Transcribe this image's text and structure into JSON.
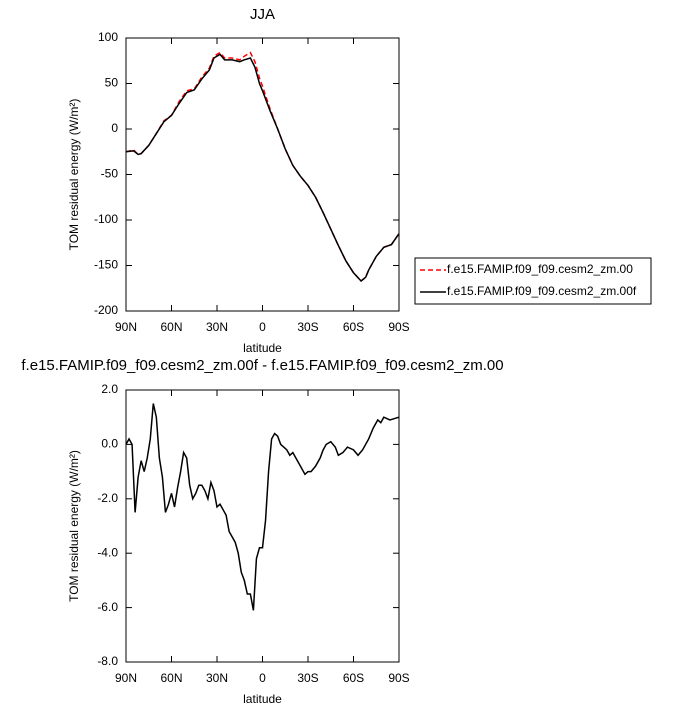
{
  "chart_data": [
    {
      "type": "line",
      "title": "JJA",
      "xlabel": "latitude",
      "ylabel": "TOM residual energy (W/m²)",
      "x": [
        90,
        85,
        82,
        80,
        75,
        70,
        65,
        60,
        55,
        50,
        45,
        40,
        35,
        32,
        28,
        25,
        20,
        15,
        12,
        8,
        5,
        2,
        0,
        -5,
        -10,
        -15,
        -20,
        -25,
        -30,
        -35,
        -40,
        -45,
        -50,
        -55,
        -60,
        -65,
        -68,
        -70,
        -75,
        -80,
        -85,
        -90
      ],
      "series": [
        {
          "name": "f.e15.FAMIP.f09_f09.cesm2_zm.00",
          "color": "#ff0000",
          "dash": true,
          "values": [
            -25,
            -23,
            -28,
            -27,
            -18,
            -5,
            9,
            15,
            30,
            42,
            44,
            57,
            67,
            80,
            84,
            78,
            78,
            76,
            80,
            84,
            74,
            56,
            47,
            22,
            0,
            -22,
            -40,
            -52,
            -62,
            -75,
            -92,
            -110,
            -128,
            -145,
            -158,
            -167,
            -163,
            -155,
            -140,
            -130,
            -127,
            -115
          ]
        },
        {
          "name": "f.e15.FAMIP.f09_f09.cesm2_zm.00f",
          "color": "#000000",
          "dash": false,
          "values": [
            -25,
            -24,
            -28,
            -27,
            -18,
            -5,
            8,
            15,
            28,
            40,
            43,
            55,
            65,
            78,
            82,
            76,
            76,
            74,
            76,
            78,
            68,
            50,
            42,
            20,
            0,
            -22,
            -40,
            -52,
            -62,
            -75,
            -92,
            -110,
            -128,
            -145,
            -158,
            -167,
            -163,
            -155,
            -140,
            -130,
            -127,
            -115
          ]
        }
      ],
      "xlim": [
        90,
        -90
      ],
      "xticks": [
        {
          "value": 90,
          "label": "90N"
        },
        {
          "value": 60,
          "label": "60N"
        },
        {
          "value": 30,
          "label": "30N"
        },
        0,
        {
          "value": -30,
          "label": "30S"
        },
        {
          "value": -60,
          "label": "60S"
        },
        {
          "value": -90,
          "label": "90S"
        }
      ],
      "ylim": [
        -200,
        100
      ],
      "yticks": [
        100,
        50,
        0,
        -50,
        -100,
        -150,
        -200
      ],
      "legend": "right"
    },
    {
      "type": "line",
      "title": "f.e15.FAMIP.f09_f09.cesm2_zm.00f - f.e15.FAMIP.f09_f09.cesm2_zm.00",
      "xlabel": "latitude",
      "ylabel": "TOM residual energy (W/m²)",
      "x": [
        90,
        88,
        86,
        84,
        82,
        80,
        78,
        76,
        74,
        72,
        70,
        68,
        66,
        64,
        62,
        60,
        58,
        56,
        54,
        52,
        50,
        48,
        46,
        44,
        42,
        40,
        38,
        36,
        34,
        32,
        30,
        28,
        26,
        24,
        22,
        20,
        18,
        16,
        14,
        12,
        10,
        8,
        6,
        4,
        2,
        0,
        -2,
        -4,
        -6,
        -8,
        -10,
        -12,
        -14,
        -16,
        -18,
        -20,
        -22,
        -25,
        -28,
        -30,
        -32,
        -35,
        -38,
        -40,
        -42,
        -45,
        -48,
        -50,
        -53,
        -56,
        -60,
        -63,
        -66,
        -70,
        -73,
        -76,
        -78,
        -80,
        -84,
        -90
      ],
      "series": [
        {
          "color": "#000000",
          "values": [
            0,
            0.2,
            0,
            -2.5,
            -1.2,
            -0.6,
            -1.0,
            -0.5,
            0.2,
            1.5,
            1.0,
            -0.5,
            -1.2,
            -2.5,
            -2.2,
            -1.8,
            -2.3,
            -1.6,
            -1.0,
            -0.3,
            -0.5,
            -1.5,
            -2.0,
            -1.8,
            -1.5,
            -1.5,
            -1.7,
            -2.0,
            -1.4,
            -1.7,
            -2.3,
            -2.2,
            -2.4,
            -2.6,
            -3.2,
            -3.4,
            -3.6,
            -4.0,
            -4.7,
            -5.0,
            -5.5,
            -5.5,
            -6.1,
            -4.2,
            -3.8,
            -3.8,
            -2.8,
            -1.0,
            0.2,
            0.4,
            0.3,
            0.0,
            -0.1,
            -0.2,
            -0.4,
            -0.3,
            -0.5,
            -0.8,
            -1.1,
            -1.0,
            -1.0,
            -0.8,
            -0.5,
            -0.2,
            0.0,
            0.1,
            -0.1,
            -0.4,
            -0.3,
            -0.1,
            -0.2,
            -0.4,
            -0.2,
            0.2,
            0.6,
            0.9,
            0.8,
            1.0,
            0.9,
            1.0
          ]
        }
      ],
      "xlim": [
        90,
        -90
      ],
      "xticks": [
        {
          "value": 90,
          "label": "90N"
        },
        {
          "value": 60,
          "label": "60N"
        },
        {
          "value": 30,
          "label": "30N"
        },
        0,
        {
          "value": -30,
          "label": "30S"
        },
        {
          "value": -60,
          "label": "60S"
        },
        {
          "value": -90,
          "label": "90S"
        }
      ],
      "ylim": [
        -8,
        2
      ],
      "yticks": [
        {
          "value": 2,
          "label": "2.0"
        },
        {
          "value": 0,
          "label": "0.0"
        },
        {
          "value": -2,
          "label": "-2.0"
        },
        {
          "value": -4,
          "label": "-4.0"
        },
        {
          "value": -6,
          "label": "-6.0"
        },
        {
          "value": -8,
          "label": "-8.0"
        }
      ]
    }
  ]
}
